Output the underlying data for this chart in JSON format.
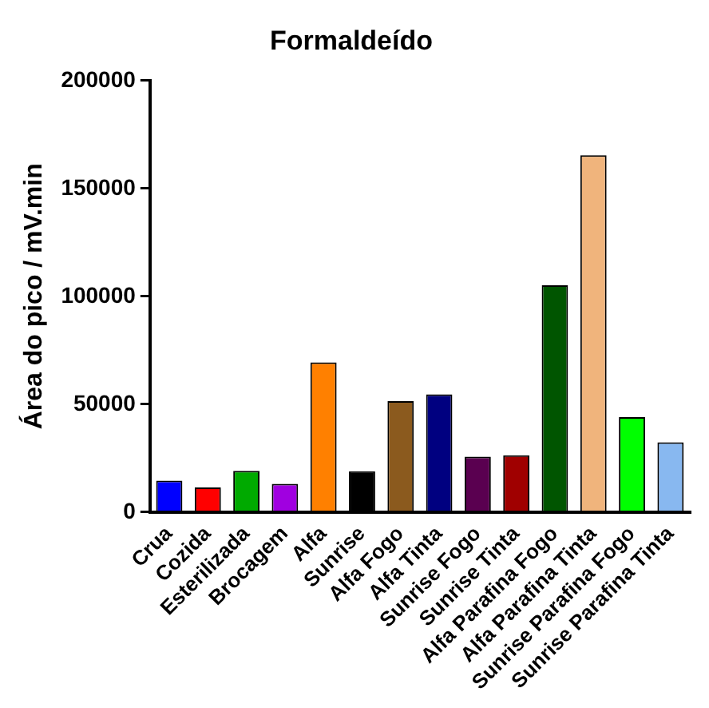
{
  "chart_data": {
    "type": "bar",
    "title": "Formaldeído",
    "ylabel": "Área do pico / mV.min",
    "categories": [
      "Crua",
      "Cozida",
      "Esterilizada",
      "Brocagem",
      "Alfa",
      "Sunrise",
      "Alfa Fogo",
      "Alfa Tinta",
      "Sunrise Fogo",
      "Sunrise Tinta",
      "Alfa Parafina Fogo",
      "Alfa Parafina Tinta",
      "Sunrise Parafina Fogo",
      "Sunrise Parafina Tinta"
    ],
    "values": [
      14600,
      11400,
      19100,
      13100,
      69400,
      18900,
      51400,
      54600,
      25700,
      26300,
      105100,
      165400,
      44000,
      32300
    ],
    "colors": [
      "#0000ff",
      "#ff0000",
      "#00aa00",
      "#a000e0",
      "#ff8000",
      "#000000",
      "#8b5a1e",
      "#000080",
      "#5a0050",
      "#a00000",
      "#005500",
      "#f0b47c",
      "#00ff00",
      "#88b8f0"
    ],
    "ylim": [
      0,
      200000
    ],
    "yticks": [
      0,
      50000,
      100000,
      150000,
      200000
    ],
    "grid": false,
    "legend": false
  }
}
